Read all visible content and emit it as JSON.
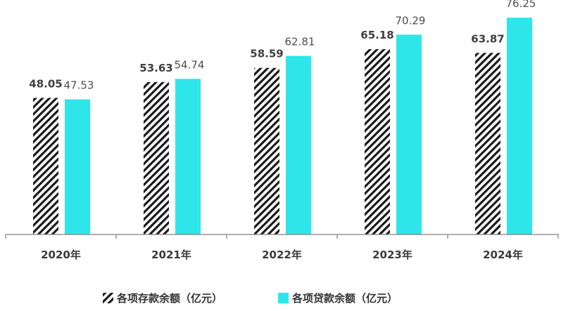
{
  "chart_data": {
    "type": "bar",
    "categories": [
      "2020年",
      "2021年",
      "2022年",
      "2023年",
      "2024年"
    ],
    "series": [
      {
        "name": "各项存款余额（亿元）",
        "values": [
          48.05,
          53.63,
          58.59,
          65.18,
          63.87
        ],
        "style": "diagonal-hatch",
        "color": "#1a1a1a"
      },
      {
        "name": "各项贷款余额（亿元）",
        "values": [
          47.53,
          54.74,
          62.81,
          70.29,
          76.25
        ],
        "style": "solid",
        "color": "#2ee6ea"
      }
    ],
    "value_labels": {
      "deposits": [
        "48.05",
        "53.63",
        "58.59",
        "65.18",
        "63.87"
      ],
      "loans": [
        "47.53",
        "54.74",
        "62.81",
        "70.29",
        "76.25"
      ]
    },
    "ylim": [
      0,
      80
    ],
    "grid": false,
    "legend": "bottom-center",
    "title": "",
    "xlabel": "",
    "ylabel": ""
  }
}
